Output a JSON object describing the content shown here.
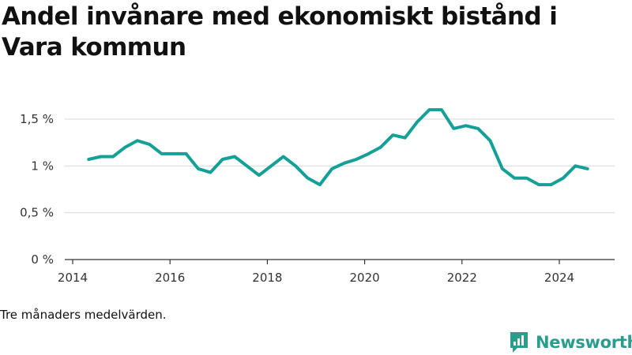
{
  "title": "Andel invånare med ekonomiskt bistånd i Vara kommun",
  "note": "Tre månaders medelvärden.",
  "brand": {
    "name": "Newsworthy",
    "icon": "newsworthy-logo-icon",
    "color": "#2a9d8f"
  },
  "colors": {
    "line": "#14a096",
    "grid": "#d9d9d9",
    "axis": "#333333"
  },
  "chart_data": {
    "type": "line",
    "title": "Andel invånare med ekonomiskt bistånd i Vara kommun",
    "xlabel": "",
    "ylabel": "",
    "xlim": [
      2014,
      2025.1
    ],
    "ylim": [
      0,
      1.5
    ],
    "grid": true,
    "yticks": [
      {
        "value": 0,
        "label": "0 %"
      },
      {
        "value": 0.5,
        "label": "0,5 %"
      },
      {
        "value": 1,
        "label": "1 %"
      },
      {
        "value": 1.5,
        "label": "1,5 %"
      }
    ],
    "xticks": [
      {
        "value": 2014,
        "label": "2014"
      },
      {
        "value": 2016,
        "label": "2016"
      },
      {
        "value": 2018,
        "label": "2018"
      },
      {
        "value": 2020,
        "label": "2020"
      },
      {
        "value": 2022,
        "label": "2022"
      },
      {
        "value": 2024,
        "label": "2024"
      }
    ],
    "series": [
      {
        "x": [
          2014.33,
          2014.58,
          2014.83,
          2015.08,
          2015.33,
          2015.58,
          2015.83,
          2016.08,
          2016.33,
          2016.58,
          2016.83,
          2017.08,
          2017.33,
          2017.58,
          2017.83,
          2018.08,
          2018.33,
          2018.58,
          2018.83,
          2019.08,
          2019.33,
          2019.58,
          2019.83,
          2020.08,
          2020.33,
          2020.58,
          2020.83,
          2021.08,
          2021.33,
          2021.58,
          2021.83,
          2022.08,
          2022.33,
          2022.58,
          2022.83,
          2023.08,
          2023.33,
          2023.58,
          2023.83,
          2024.08,
          2024.33,
          2024.58
        ],
        "values": [
          1.07,
          1.1,
          1.1,
          1.2,
          1.27,
          1.23,
          1.13,
          1.13,
          1.13,
          0.97,
          0.93,
          1.07,
          1.1,
          1.0,
          0.9,
          1.0,
          1.1,
          1.0,
          0.87,
          0.8,
          0.97,
          1.03,
          1.07,
          1.13,
          1.2,
          1.33,
          1.3,
          1.47,
          1.6,
          1.6,
          1.4,
          1.43,
          1.4,
          1.27,
          0.97,
          0.87,
          0.87,
          0.8,
          0.8,
          0.87,
          1.0,
          0.97
        ]
      }
    ]
  }
}
